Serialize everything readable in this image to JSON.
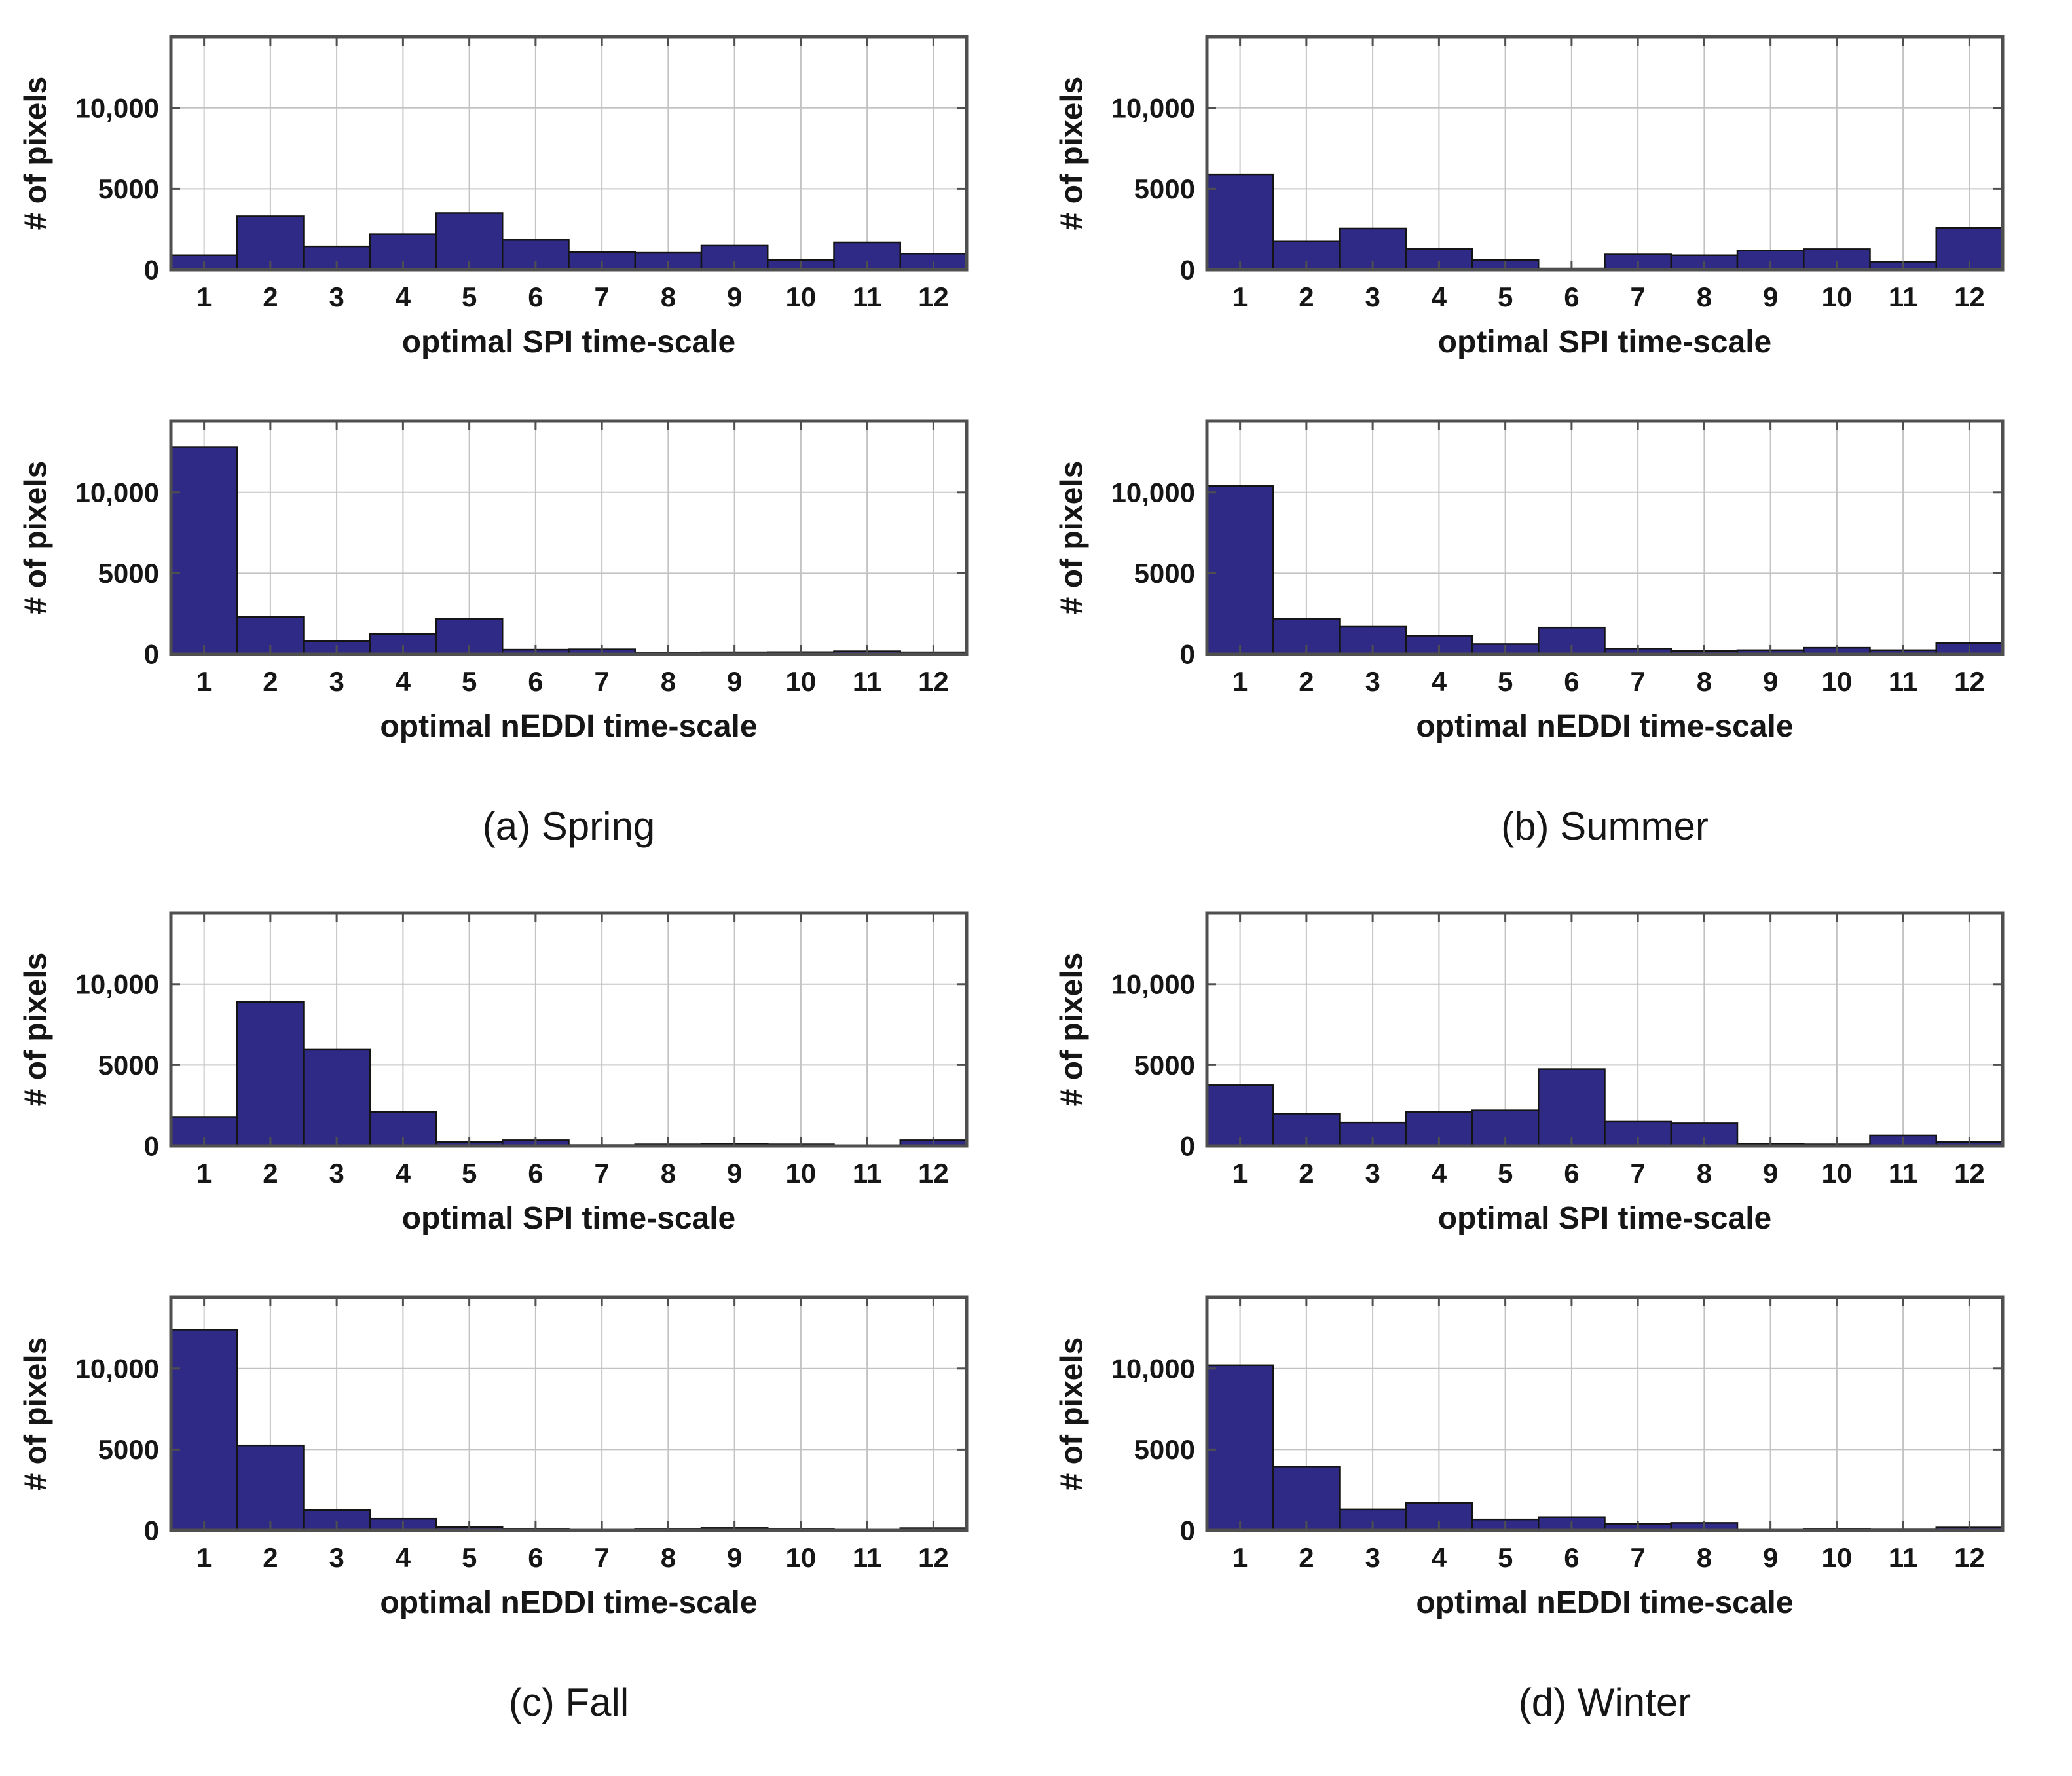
{
  "figure": {
    "ylabel": "# of pixels",
    "ytick_labels": [
      "0",
      "5000",
      "10,000"
    ],
    "yticks": [
      0,
      5000,
      10000
    ],
    "ylim": [
      0,
      14400
    ],
    "xtick_labels": [
      "1",
      "2",
      "3",
      "4",
      "5",
      "6",
      "7",
      "8",
      "9",
      "10",
      "11",
      "12"
    ],
    "colors": {
      "bar_fill": "#2f2a86",
      "bar_edge": "#141414",
      "frame": "#4f4f4f",
      "grid": "#c3c3c3",
      "text": "#161616"
    }
  },
  "panels": [
    {
      "caption": "(a) Spring"
    },
    {
      "caption": "(b) Summer"
    },
    {
      "caption": "(c) Fall"
    },
    {
      "caption": "(d) Winter"
    }
  ],
  "chart_data": [
    {
      "type": "bar",
      "panel": "(a) Spring",
      "xlabel": "optimal SPI time-scale",
      "ylabel": "# of pixels",
      "categories": [
        1,
        2,
        3,
        4,
        5,
        6,
        7,
        8,
        9,
        10,
        11,
        12
      ],
      "values": [
        900,
        3300,
        1450,
        2200,
        3500,
        1850,
        1100,
        1050,
        1500,
        600,
        1700,
        1000
      ],
      "ylim": [
        0,
        14400
      ],
      "yticks": [
        0,
        5000,
        10000
      ],
      "grid": true
    },
    {
      "type": "bar",
      "panel": "(a) Spring",
      "xlabel": "optimal nEDDI time-scale",
      "ylabel": "# of pixels",
      "categories": [
        1,
        2,
        3,
        4,
        5,
        6,
        7,
        8,
        9,
        10,
        11,
        12
      ],
      "values": [
        12800,
        2300,
        800,
        1250,
        2200,
        280,
        300,
        80,
        120,
        130,
        180,
        120
      ],
      "ylim": [
        0,
        14400
      ],
      "yticks": [
        0,
        5000,
        10000
      ],
      "grid": true
    },
    {
      "type": "bar",
      "panel": "(b) Summer",
      "xlabel": "optimal SPI time-scale",
      "ylabel": "# of pixels",
      "categories": [
        1,
        2,
        3,
        4,
        5,
        6,
        7,
        8,
        9,
        10,
        11,
        12
      ],
      "values": [
        5900,
        1750,
        2550,
        1300,
        600,
        80,
        950,
        900,
        1200,
        1280,
        500,
        2600
      ],
      "ylim": [
        0,
        14400
      ],
      "yticks": [
        0,
        5000,
        10000
      ],
      "grid": true
    },
    {
      "type": "bar",
      "panel": "(b) Summer",
      "xlabel": "optimal nEDDI time-scale",
      "ylabel": "# of pixels",
      "categories": [
        1,
        2,
        3,
        4,
        5,
        6,
        7,
        8,
        9,
        10,
        11,
        12
      ],
      "values": [
        10400,
        2200,
        1700,
        1150,
        630,
        1650,
        350,
        200,
        250,
        400,
        250,
        700
      ],
      "ylim": [
        0,
        14400
      ],
      "yticks": [
        0,
        5000,
        10000
      ],
      "grid": true
    },
    {
      "type": "bar",
      "panel": "(c) Fall",
      "xlabel": "optimal SPI time-scale",
      "ylabel": "# of pixels",
      "categories": [
        1,
        2,
        3,
        4,
        5,
        6,
        7,
        8,
        9,
        10,
        11,
        12
      ],
      "values": [
        1800,
        8900,
        5950,
        2100,
        250,
        350,
        60,
        100,
        150,
        100,
        50,
        350
      ],
      "ylim": [
        0,
        14400
      ],
      "yticks": [
        0,
        5000,
        10000
      ],
      "grid": true
    },
    {
      "type": "bar",
      "panel": "(c) Fall",
      "xlabel": "optimal nEDDI time-scale",
      "ylabel": "# of pixels",
      "categories": [
        1,
        2,
        3,
        4,
        5,
        6,
        7,
        8,
        9,
        10,
        11,
        12
      ],
      "values": [
        12400,
        5250,
        1250,
        720,
        200,
        110,
        40,
        70,
        150,
        70,
        40,
        140
      ],
      "ylim": [
        0,
        14400
      ],
      "yticks": [
        0,
        5000,
        10000
      ],
      "grid": true
    },
    {
      "type": "bar",
      "panel": "(d) Winter",
      "xlabel": "optimal SPI time-scale",
      "ylabel": "# of pixels",
      "categories": [
        1,
        2,
        3,
        4,
        5,
        6,
        7,
        8,
        9,
        10,
        11,
        12
      ],
      "values": [
        3750,
        2000,
        1450,
        2100,
        2200,
        4750,
        1500,
        1400,
        150,
        100,
        650,
        250
      ],
      "ylim": [
        0,
        14400
      ],
      "yticks": [
        0,
        5000,
        10000
      ],
      "grid": true
    },
    {
      "type": "bar",
      "panel": "(d) Winter",
      "xlabel": "optimal nEDDI time-scale",
      "ylabel": "# of pixels",
      "categories": [
        1,
        2,
        3,
        4,
        5,
        6,
        7,
        8,
        9,
        10,
        11,
        12
      ],
      "values": [
        10200,
        3950,
        1300,
        1700,
        680,
        820,
        400,
        470,
        50,
        110,
        60,
        180
      ],
      "ylim": [
        0,
        14400
      ],
      "yticks": [
        0,
        5000,
        10000
      ],
      "grid": true
    }
  ]
}
